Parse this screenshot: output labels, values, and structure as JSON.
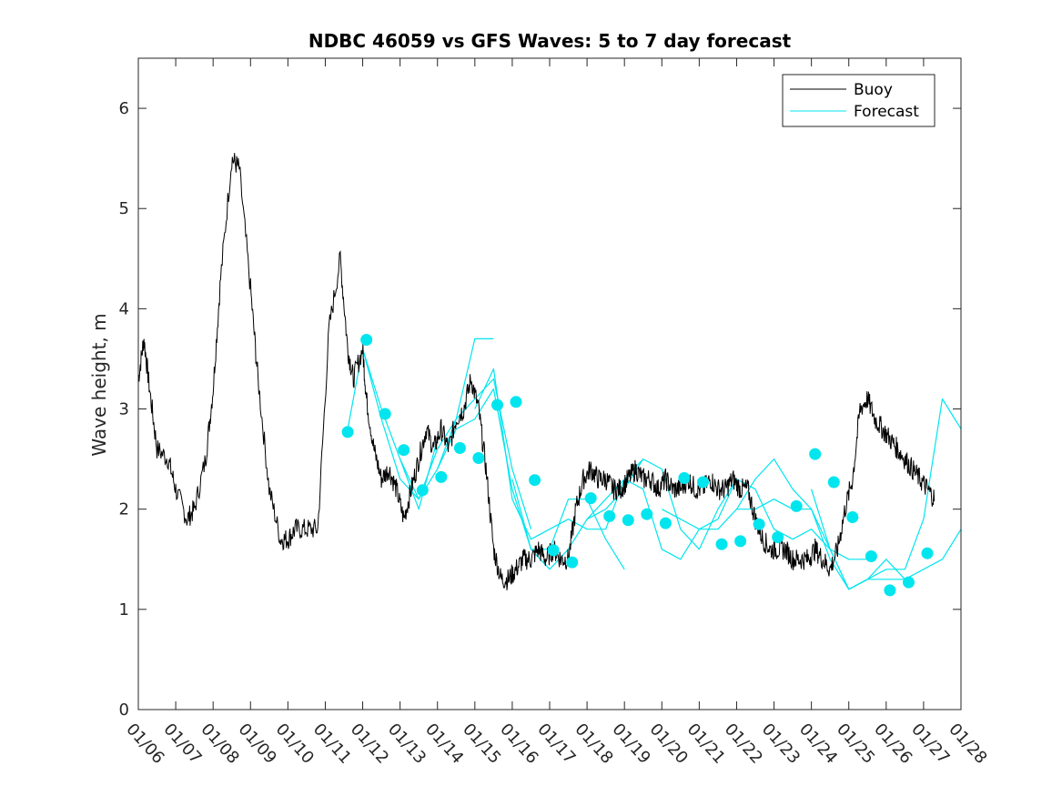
{
  "chart_data": {
    "type": "line",
    "title": "NDBC 46059 vs GFS Waves: 5 to 7 day forecast",
    "xlabel": "",
    "ylabel": "Wave height, m",
    "x_unit": "days since 01/06",
    "xlim": [
      0,
      22
    ],
    "ylim": [
      0,
      6.5
    ],
    "yticks": [
      0,
      1,
      2,
      3,
      4,
      5,
      6
    ],
    "ytick_labels": [
      "0",
      "1",
      "2",
      "3",
      "4",
      "5",
      "6"
    ],
    "xtick_labels": [
      "01/06",
      "01/07",
      "01/08",
      "01/09",
      "01/10",
      "01/11",
      "01/12",
      "01/13",
      "01/14",
      "01/15",
      "01/16",
      "01/17",
      "01/18",
      "01/19",
      "01/20",
      "01/21",
      "01/22",
      "01/23",
      "01/24",
      "01/25",
      "01/26",
      "01/27",
      "01/28"
    ],
    "legend": {
      "placement": "top-right",
      "entries": [
        "Buoy",
        "Forecast"
      ]
    },
    "colors": {
      "buoy": "#000000",
      "forecast": "#00e5ee",
      "axis": "#262626"
    },
    "buoy_series": {
      "name": "Buoy",
      "x": [
        0,
        0.15,
        0.3,
        0.5,
        0.8,
        1.0,
        1.3,
        1.5,
        1.8,
        2.0,
        2.2,
        2.5,
        2.7,
        3.0,
        3.2,
        3.5,
        3.8,
        4.0,
        4.2,
        4.5,
        4.8,
        5.1,
        5.4,
        5.6,
        5.75,
        6.0,
        6.1,
        6.3,
        6.5,
        6.7,
        6.9,
        7.1,
        7.3,
        7.5,
        7.7,
        7.9,
        8.1,
        8.3,
        8.5,
        8.7,
        8.9,
        9.1,
        9.3,
        9.5,
        9.7,
        9.9,
        10.1,
        10.3,
        10.5,
        10.7,
        10.9,
        11.1,
        11.3,
        11.5,
        11.7,
        11.9,
        12.1,
        12.3,
        12.5,
        12.7,
        12.9,
        13.1,
        13.3,
        13.5,
        13.7,
        13.9,
        14.1,
        14.3,
        14.5,
        14.7,
        14.9,
        15.1,
        15.3,
        15.5,
        15.7,
        15.9,
        16.1,
        16.3,
        16.5,
        16.7,
        16.9,
        17.1,
        17.3,
        17.5,
        17.7,
        17.9,
        18.1,
        18.3,
        18.5,
        18.7,
        18.9,
        19.1,
        19.3,
        19.5,
        19.7,
        19.9,
        20.1,
        20.3,
        20.5,
        20.7,
        20.9,
        21.1,
        21.3
      ],
      "values": [
        3.3,
        3.7,
        3.2,
        2.6,
        2.5,
        2.2,
        1.9,
        2.0,
        2.5,
        3.2,
        4.3,
        5.5,
        5.4,
        4.2,
        3.3,
        2.2,
        1.7,
        1.7,
        1.8,
        1.8,
        1.8,
        3.8,
        4.5,
        3.6,
        3.3,
        3.6,
        3.1,
        2.6,
        2.3,
        2.4,
        2.2,
        1.9,
        2.2,
        2.5,
        2.8,
        2.6,
        2.8,
        2.6,
        2.9,
        3.0,
        3.3,
        3.0,
        2.4,
        1.6,
        1.3,
        1.3,
        1.4,
        1.5,
        1.5,
        1.6,
        1.5,
        1.6,
        1.5,
        1.5,
        2.0,
        2.3,
        2.4,
        2.3,
        2.3,
        2.2,
        2.2,
        2.3,
        2.4,
        2.3,
        2.3,
        2.2,
        2.3,
        2.2,
        2.2,
        2.3,
        2.2,
        2.2,
        2.3,
        2.2,
        2.2,
        2.3,
        2.2,
        2.2,
        1.9,
        1.7,
        1.6,
        1.6,
        1.6,
        1.5,
        1.5,
        1.5,
        1.6,
        1.5,
        1.4,
        1.6,
        2.0,
        2.3,
        3.0,
        3.1,
        2.9,
        2.8,
        2.7,
        2.6,
        2.5,
        2.4,
        2.3,
        2.2,
        2.1
      ],
      "visible_until_x": 21.3
    },
    "forecast_series": [
      {
        "name": "Forecast 1",
        "x": [
          5.6,
          6.0,
          6.5,
          7.0,
          7.5,
          8.0
        ],
        "values": [
          2.8,
          3.6,
          3.0,
          2.5,
          2.0,
          2.7
        ]
      },
      {
        "name": "Forecast 2",
        "x": [
          6.0,
          6.5,
          7.0,
          7.5,
          8.0,
          8.5,
          9.0,
          9.5
        ],
        "values": [
          3.6,
          2.9,
          2.3,
          2.1,
          2.6,
          2.9,
          3.7,
          3.7
        ]
      },
      {
        "name": "Forecast 3",
        "x": [
          7.0,
          7.5,
          8.0,
          8.5,
          9.0,
          9.5,
          10.0,
          10.5
        ],
        "values": [
          2.5,
          2.1,
          2.4,
          2.9,
          3.1,
          3.3,
          2.4,
          1.8
        ]
      },
      {
        "name": "Forecast 4",
        "x": [
          8.0,
          8.5,
          9.0,
          9.5,
          10.0,
          10.5,
          11.0,
          11.5,
          12.0,
          12.5,
          13.0
        ],
        "values": [
          2.4,
          2.8,
          2.9,
          3.2,
          2.2,
          1.6,
          1.6,
          2.1,
          2.1,
          1.7,
          1.4
        ]
      },
      {
        "name": "Forecast 5",
        "x": [
          9.0,
          9.5,
          10.0,
          10.5,
          11.0,
          11.5,
          12.0,
          12.5,
          13.0,
          13.5
        ],
        "values": [
          3.0,
          3.4,
          2.1,
          1.7,
          1.8,
          1.9,
          1.8,
          1.8,
          2.3,
          2.5
        ]
      },
      {
        "name": "Forecast 6",
        "x": [
          10.0,
          10.5,
          11.0,
          11.5,
          12.0,
          12.5,
          13.0,
          13.5,
          14.0,
          14.5,
          15.0,
          15.5,
          16.0
        ],
        "values": [
          2.3,
          1.6,
          1.4,
          1.6,
          1.9,
          2.0,
          2.2,
          2.5,
          2.4,
          1.8,
          1.6,
          2.0,
          2.3
        ]
      },
      {
        "name": "Forecast 7",
        "x": [
          12.0,
          12.5,
          13.0,
          13.5,
          14.0,
          14.5,
          15.0,
          15.5,
          16.0,
          16.5,
          17.0,
          17.5,
          18.0,
          18.5,
          19.0,
          19.5
        ],
        "values": [
          1.9,
          2.1,
          2.3,
          2.2,
          1.6,
          1.5,
          1.8,
          1.9,
          2.3,
          2.2,
          1.8,
          1.7,
          1.8,
          1.6,
          1.5,
          1.5
        ]
      },
      {
        "name": "Forecast 8",
        "x": [
          14.0,
          14.5,
          15.0,
          15.5,
          16.0,
          16.5,
          17.0,
          17.5,
          18.0,
          18.5,
          19.0,
          19.5,
          20.0,
          20.5
        ],
        "values": [
          2.0,
          1.9,
          1.8,
          1.8,
          2.0,
          2.0,
          2.1,
          2.0,
          2.0,
          1.5,
          1.2,
          1.3,
          1.3,
          1.3
        ]
      },
      {
        "name": "Forecast 9",
        "x": [
          16.0,
          16.5,
          17.0,
          17.5,
          18.0,
          18.5,
          19.0,
          19.5,
          20.0,
          20.5,
          21.0,
          21.5,
          22.0
        ],
        "values": [
          2.0,
          2.3,
          2.5,
          2.2,
          2.0,
          1.6,
          1.2,
          1.3,
          1.4,
          1.4,
          1.9,
          3.1,
          2.8
        ]
      },
      {
        "name": "Forecast 10",
        "x": [
          18.0,
          18.5,
          19.0,
          19.5,
          20.0,
          20.5,
          21.0,
          21.5,
          22.0
        ],
        "values": [
          2.2,
          1.6,
          1.2,
          1.3,
          1.5,
          1.3,
          1.4,
          1.5,
          1.8
        ]
      }
    ],
    "forecast_points": {
      "name": "Forecast markers",
      "x": [
        5.6,
        6.1,
        6.6,
        7.1,
        7.6,
        8.1,
        8.6,
        9.1,
        9.6,
        10.1,
        10.6,
        11.1,
        11.6,
        12.1,
        12.6,
        13.1,
        13.6,
        14.1,
        14.6,
        15.1,
        15.6,
        16.1,
        16.6,
        17.1,
        17.6,
        18.1,
        18.6,
        19.1,
        19.6,
        20.1,
        20.6,
        21.1
      ],
      "values": [
        2.77,
        3.69,
        2.95,
        2.59,
        2.19,
        2.32,
        2.61,
        2.51,
        3.04,
        3.07,
        2.29,
        1.59,
        1.47,
        2.11,
        1.93,
        1.89,
        1.95,
        1.86,
        2.31,
        2.27,
        1.65,
        1.68,
        1.85,
        1.72,
        2.03,
        2.55,
        2.27,
        1.92,
        1.53,
        1.19,
        1.27,
        1.56
      ]
    }
  }
}
